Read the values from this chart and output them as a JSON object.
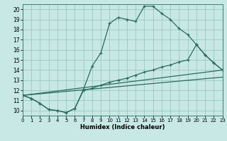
{
  "xlabel": "Humidex (Indice chaleur)",
  "bg_color": "#c8e8e5",
  "grid_color": "#99c8c4",
  "line_color": "#2a6b60",
  "xlim": [
    0,
    23
  ],
  "ylim": [
    9.5,
    20.5
  ],
  "xticks": [
    0,
    1,
    2,
    3,
    4,
    5,
    6,
    7,
    8,
    9,
    10,
    11,
    12,
    13,
    14,
    15,
    16,
    17,
    18,
    19,
    20,
    21,
    22,
    23
  ],
  "yticks": [
    10,
    11,
    12,
    13,
    14,
    15,
    16,
    17,
    18,
    19,
    20
  ],
  "curve1_x": [
    0,
    1,
    2,
    3,
    4,
    5,
    6,
    7,
    8,
    9,
    10,
    11,
    12,
    13,
    14,
    15,
    16,
    17,
    18,
    19,
    20,
    21,
    22,
    23
  ],
  "curve1_y": [
    11.5,
    11.2,
    10.7,
    10.1,
    10.0,
    9.8,
    10.2,
    12.1,
    14.4,
    15.7,
    18.6,
    19.2,
    19.0,
    18.8,
    20.3,
    20.3,
    19.6,
    19.0,
    18.1,
    17.5,
    16.5,
    15.5,
    14.7,
    14.0
  ],
  "curve2_x": [
    0,
    1,
    2,
    3,
    4,
    5,
    6,
    7,
    8,
    9,
    10,
    11,
    12,
    13,
    14,
    15,
    16,
    17,
    18,
    19,
    20,
    21,
    22,
    23
  ],
  "curve2_y": [
    11.5,
    11.2,
    10.7,
    10.1,
    10.0,
    9.8,
    10.2,
    12.0,
    12.2,
    12.5,
    12.8,
    13.0,
    13.2,
    13.5,
    13.8,
    14.0,
    14.3,
    14.5,
    14.8,
    15.0,
    16.5,
    15.5,
    14.7,
    14.0
  ],
  "line3_x": [
    0,
    23
  ],
  "line3_y": [
    11.5,
    14.0
  ],
  "line4_x": [
    0,
    23
  ],
  "line4_y": [
    11.5,
    13.3
  ]
}
